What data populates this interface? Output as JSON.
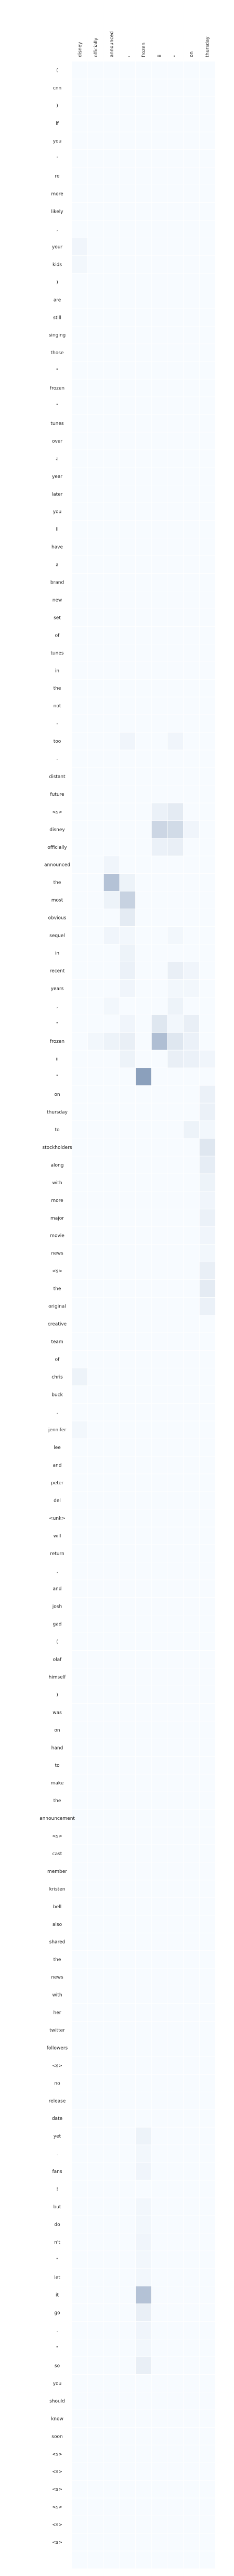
{
  "chart_data": {
    "type": "heatmap",
    "title": "",
    "xlabel": "",
    "ylabel": "",
    "x_tokens": [
      "disney",
      "officially",
      "announced",
      ",",
      "frozen",
      "ii",
      "\"",
      "on",
      "thursday"
    ],
    "y_tokens": [
      "(",
      "cnn",
      ")",
      "if",
      "you",
      "'",
      "re",
      "more",
      "likely",
      ",",
      "your",
      "kids",
      ")",
      "are",
      "still",
      "singing",
      "those",
      "\"",
      "frozen",
      "\"",
      "tunes",
      "over",
      "a",
      "year",
      "later",
      "you",
      "ll",
      "have",
      "a",
      "brand",
      "new",
      "set",
      "of",
      "tunes",
      "in",
      "the",
      "not",
      "-",
      "too",
      "-",
      "distant",
      "future",
      "<s>",
      "disney",
      "officially",
      "announced",
      "the",
      "most",
      "obvious",
      "sequel",
      "in",
      "recent",
      "years",
      ",",
      "\"",
      "frozen",
      "ii",
      "\"",
      "on",
      "thursday",
      "to",
      "stockholders",
      "along",
      "with",
      "more",
      "major",
      "movie",
      "news",
      "<s>",
      "the",
      "original",
      "creative",
      "team",
      "of",
      "chris",
      "buck",
      ",",
      "jennifer",
      "lee",
      "and",
      "peter",
      "del",
      "<unk>",
      "will",
      "return",
      ",",
      "and",
      "josh",
      "gad",
      "(",
      "olaf",
      "himself",
      ")",
      "was",
      "on",
      "hand",
      "to",
      "make",
      "the",
      "announcement",
      "<s>",
      "cast",
      "member",
      "kristen",
      "bell",
      "also",
      "shared",
      "the",
      "news",
      "with",
      "her",
      "twitter",
      "followers",
      "<s>",
      "no",
      "release",
      "date",
      "yet",
      ".",
      "fans",
      "!",
      "but",
      "do",
      "n't",
      "\"",
      "let",
      "it",
      "go",
      ".",
      "\"",
      "so",
      "you",
      "should",
      "know",
      "soon",
      "<s>",
      "<s>",
      "<s>",
      "<s>",
      "<s>",
      "<s>"
    ],
    "values": [
      [
        0,
        0,
        0,
        0,
        0,
        0,
        0,
        0,
        0
      ],
      [
        0,
        0,
        0,
        0,
        0,
        0,
        0,
        0,
        0
      ],
      [
        0,
        0,
        0,
        0,
        0,
        0,
        0,
        0,
        0
      ],
      [
        0,
        0,
        0,
        0,
        0,
        0,
        0,
        0,
        0
      ],
      [
        0,
        0,
        0,
        0,
        0,
        0,
        0,
        0,
        0
      ],
      [
        0,
        0,
        0,
        0,
        0,
        0,
        0,
        0,
        0
      ],
      [
        0,
        0,
        0,
        0,
        0,
        0,
        0,
        0,
        0
      ],
      [
        0,
        0,
        0,
        0,
        0,
        0,
        0,
        0,
        0
      ],
      [
        0,
        0,
        0,
        0,
        0,
        0,
        0,
        0,
        0
      ],
      [
        0,
        0,
        0,
        0,
        0,
        0,
        0,
        0,
        0
      ],
      [
        0.03,
        0,
        0,
        0,
        0,
        0,
        0,
        0,
        0
      ],
      [
        0.02,
        0,
        0,
        0,
        0,
        0,
        0,
        0,
        0
      ],
      [
        0,
        0,
        0,
        0,
        0,
        0,
        0,
        0,
        0
      ],
      [
        0,
        0,
        0,
        0,
        0,
        0,
        0,
        0,
        0
      ],
      [
        0,
        0,
        0,
        0,
        0,
        0,
        0,
        0,
        0
      ],
      [
        0,
        0,
        0,
        0,
        0,
        0,
        0,
        0,
        0
      ],
      [
        0,
        0,
        0,
        0,
        0,
        0,
        0,
        0,
        0
      ],
      [
        0,
        0,
        0,
        0,
        0,
        0,
        0,
        0,
        0
      ],
      [
        0,
        0,
        0,
        0,
        0,
        0,
        0,
        0,
        0
      ],
      [
        0,
        0,
        0,
        0,
        0,
        0,
        0,
        0,
        0
      ],
      [
        0,
        0,
        0,
        0,
        0,
        0,
        0,
        0,
        0
      ],
      [
        0,
        0,
        0,
        0,
        0,
        0,
        0,
        0,
        0
      ],
      [
        0,
        0,
        0,
        0,
        0,
        0,
        0,
        0,
        0
      ],
      [
        0,
        0,
        0,
        0,
        0,
        0,
        0,
        0,
        0
      ],
      [
        0,
        0,
        0,
        0,
        0,
        0,
        0,
        0,
        0
      ],
      [
        0,
        0,
        0,
        0,
        0,
        0,
        0,
        0,
        0
      ],
      [
        0,
        0,
        0,
        0,
        0,
        0,
        0,
        0,
        0
      ],
      [
        0,
        0,
        0,
        0,
        0,
        0,
        0,
        0,
        0
      ],
      [
        0,
        0,
        0,
        0,
        0,
        0,
        0,
        0,
        0
      ],
      [
        0,
        0,
        0,
        0,
        0,
        0,
        0,
        0,
        0
      ],
      [
        0,
        0,
        0,
        0,
        0,
        0,
        0,
        0,
        0
      ],
      [
        0,
        0,
        0,
        0,
        0,
        0,
        0,
        0,
        0
      ],
      [
        0,
        0,
        0,
        0,
        0,
        0,
        0,
        0,
        0
      ],
      [
        0,
        0,
        0,
        0,
        0,
        0,
        0,
        0,
        0
      ],
      [
        0,
        0,
        0,
        0,
        0,
        0,
        0,
        0,
        0
      ],
      [
        0,
        0,
        0,
        0,
        0,
        0,
        0,
        0,
        0
      ],
      [
        0,
        0,
        0,
        0,
        0,
        0,
        0,
        0,
        0
      ],
      [
        0,
        0,
        0,
        0,
        0,
        0,
        0,
        0,
        0
      ],
      [
        0,
        0,
        0,
        0.03,
        0,
        0,
        0.03,
        0,
        0
      ],
      [
        0,
        0,
        0,
        0,
        0,
        0,
        0,
        0,
        0
      ],
      [
        0,
        0,
        0,
        0,
        0,
        0,
        0,
        0,
        0
      ],
      [
        0,
        0,
        0,
        0,
        0,
        0,
        0,
        0,
        0
      ],
      [
        0,
        0,
        0,
        0,
        0,
        0.05,
        0.08,
        0,
        0
      ],
      [
        0,
        0,
        0,
        0,
        0,
        0.18,
        0.16,
        0.03,
        0
      ],
      [
        0,
        0,
        0,
        0,
        0,
        0.05,
        0.06,
        0,
        0
      ],
      [
        0,
        0,
        0.03,
        0,
        0,
        0,
        0,
        0,
        0
      ],
      [
        0,
        0,
        0.28,
        0.04,
        0,
        0,
        0,
        0,
        0
      ],
      [
        0,
        0,
        0.04,
        0.2,
        0,
        0,
        0,
        0,
        0
      ],
      [
        0,
        0,
        0,
        0.08,
        0,
        0,
        0,
        0,
        0
      ],
      [
        0,
        0,
        0.03,
        0.02,
        0,
        0,
        0.02,
        0,
        0
      ],
      [
        0,
        0,
        0,
        0.04,
        0,
        0,
        0,
        0,
        0
      ],
      [
        0,
        0,
        0,
        0.05,
        0,
        0,
        0.06,
        0.03,
        0
      ],
      [
        0,
        0,
        0,
        0.03,
        0,
        0,
        0.02,
        0.02,
        0
      ],
      [
        0,
        0,
        0.02,
        0,
        0,
        0,
        0.04,
        0,
        0
      ],
      [
        0,
        0,
        0,
        0.03,
        0,
        0.1,
        0.02,
        0.06,
        0
      ],
      [
        0,
        0.02,
        0.04,
        0.06,
        0,
        0.3,
        0.1,
        0.05,
        0
      ],
      [
        0,
        0,
        0,
        0.04,
        0,
        0,
        0.06,
        0.05,
        0.03
      ],
      [
        0,
        0,
        0,
        0,
        0.45,
        0,
        0,
        0,
        0
      ],
      [
        0,
        0,
        0,
        0,
        0,
        0,
        0,
        0,
        0.05
      ],
      [
        0,
        0,
        0,
        0,
        0,
        0,
        0,
        0,
        0.05
      ],
      [
        0,
        0,
        0,
        0,
        0,
        0,
        0,
        0.04,
        0.02
      ],
      [
        0,
        0,
        0,
        0,
        0,
        0,
        0,
        0,
        0.1
      ],
      [
        0,
        0,
        0,
        0,
        0,
        0,
        0,
        0,
        0.07
      ],
      [
        0,
        0,
        0,
        0,
        0,
        0,
        0,
        0,
        0.04
      ],
      [
        0,
        0,
        0,
        0,
        0,
        0,
        0,
        0,
        0.03
      ],
      [
        0,
        0,
        0,
        0,
        0,
        0,
        0,
        0,
        0.05
      ],
      [
        0,
        0,
        0,
        0,
        0,
        0,
        0,
        0,
        0.03
      ],
      [
        0,
        0,
        0,
        0,
        0,
        0,
        0,
        0,
        0.02
      ],
      [
        0,
        0,
        0,
        0,
        0,
        0,
        0,
        0,
        0.06
      ],
      [
        0,
        0,
        0,
        0,
        0,
        0,
        0,
        0,
        0.08
      ],
      [
        0,
        0,
        0,
        0,
        0,
        0,
        0,
        0,
        0.05
      ],
      [
        0,
        0,
        0,
        0,
        0,
        0,
        0,
        0,
        0
      ],
      [
        0,
        0,
        0,
        0,
        0,
        0,
        0,
        0,
        0
      ],
      [
        0,
        0,
        0,
        0,
        0,
        0,
        0,
        0,
        0
      ],
      [
        0.04,
        0,
        0,
        0,
        0,
        0,
        0,
        0,
        0
      ],
      [
        0,
        0,
        0,
        0,
        0,
        0,
        0,
        0,
        0
      ],
      [
        0,
        0,
        0,
        0,
        0,
        0,
        0,
        0,
        0
      ],
      [
        0.02,
        0,
        0,
        0,
        0,
        0,
        0,
        0,
        0
      ],
      [
        0,
        0,
        0,
        0,
        0,
        0,
        0,
        0,
        0
      ],
      [
        0,
        0,
        0,
        0,
        0,
        0,
        0,
        0,
        0
      ],
      [
        0,
        0,
        0,
        0,
        0,
        0,
        0,
        0,
        0
      ],
      [
        0,
        0,
        0,
        0,
        0,
        0,
        0,
        0,
        0
      ],
      [
        0,
        0,
        0,
        0,
        0,
        0,
        0,
        0,
        0
      ],
      [
        0,
        0,
        0,
        0,
        0,
        0,
        0,
        0,
        0
      ],
      [
        0,
        0,
        0,
        0,
        0,
        0,
        0,
        0,
        0
      ],
      [
        0,
        0,
        0,
        0,
        0,
        0,
        0,
        0,
        0
      ],
      [
        0,
        0,
        0,
        0,
        0,
        0,
        0,
        0,
        0
      ],
      [
        0,
        0,
        0,
        0,
        0,
        0,
        0,
        0,
        0
      ],
      [
        0,
        0,
        0,
        0,
        0,
        0,
        0,
        0,
        0
      ],
      [
        0,
        0,
        0,
        0,
        0,
        0,
        0,
        0,
        0
      ],
      [
        0,
        0,
        0,
        0,
        0,
        0,
        0,
        0,
        0
      ],
      [
        0,
        0,
        0,
        0,
        0,
        0,
        0,
        0,
        0
      ],
      [
        0,
        0,
        0,
        0,
        0,
        0,
        0,
        0,
        0
      ],
      [
        0,
        0,
        0,
        0,
        0,
        0,
        0,
        0,
        0
      ],
      [
        0,
        0,
        0,
        0,
        0,
        0,
        0,
        0,
        0
      ],
      [
        0,
        0,
        0,
        0,
        0,
        0,
        0,
        0,
        0
      ],
      [
        0,
        0,
        0,
        0,
        0,
        0,
        0,
        0,
        0
      ],
      [
        0,
        0,
        0,
        0,
        0,
        0,
        0,
        0,
        0
      ],
      [
        0,
        0,
        0,
        0,
        0,
        0,
        0,
        0,
        0
      ],
      [
        0,
        0,
        0,
        0,
        0,
        0,
        0,
        0,
        0
      ],
      [
        0,
        0,
        0,
        0,
        0,
        0,
        0,
        0,
        0
      ],
      [
        0,
        0,
        0,
        0,
        0,
        0,
        0,
        0,
        0
      ],
      [
        0,
        0,
        0,
        0,
        0,
        0,
        0,
        0,
        0
      ],
      [
        0,
        0,
        0,
        0,
        0,
        0,
        0,
        0,
        0
      ],
      [
        0,
        0,
        0,
        0,
        0,
        0,
        0,
        0,
        0
      ],
      [
        0,
        0,
        0,
        0,
        0,
        0,
        0,
        0,
        0
      ],
      [
        0,
        0,
        0,
        0,
        0,
        0,
        0,
        0,
        0
      ],
      [
        0,
        0,
        0,
        0,
        0,
        0,
        0,
        0,
        0
      ],
      [
        0,
        0,
        0,
        0,
        0,
        0,
        0,
        0,
        0
      ],
      [
        0,
        0,
        0,
        0,
        0,
        0,
        0,
        0,
        0
      ],
      [
        0,
        0,
        0,
        0,
        0,
        0,
        0,
        0,
        0
      ],
      [
        0,
        0,
        0,
        0,
        0,
        0,
        0,
        0,
        0
      ],
      [
        0,
        0,
        0,
        0,
        0,
        0,
        0,
        0,
        0
      ],
      [
        0,
        0,
        0,
        0,
        0,
        0,
        0,
        0,
        0
      ],
      [
        0,
        0,
        0,
        0,
        0,
        0,
        0,
        0,
        0
      ],
      [
        0,
        0,
        0,
        0,
        0,
        0,
        0,
        0,
        0
      ],
      [
        0,
        0,
        0,
        0,
        0,
        0,
        0,
        0,
        0
      ],
      [
        0,
        0,
        0,
        0,
        0.04,
        0,
        0,
        0,
        0
      ],
      [
        0,
        0,
        0,
        0,
        0.02,
        0,
        0,
        0,
        0
      ],
      [
        0,
        0,
        0,
        0,
        0.03,
        0,
        0,
        0,
        0
      ],
      [
        0,
        0,
        0,
        0,
        0,
        0,
        0,
        0,
        0
      ],
      [
        0,
        0,
        0,
        0,
        0.02,
        0,
        0,
        0,
        0
      ],
      [
        0,
        0,
        0,
        0,
        0.02,
        0,
        0,
        0,
        0
      ],
      [
        0,
        0,
        0,
        0,
        0.03,
        0,
        0,
        0,
        0
      ],
      [
        0,
        0,
        0,
        0,
        0.02,
        0,
        0,
        0,
        0
      ],
      [
        0,
        0,
        0,
        0,
        0.02,
        0,
        0,
        0,
        0
      ],
      [
        0,
        0,
        0,
        0,
        0.28,
        0,
        0,
        0,
        0
      ],
      [
        0,
        0,
        0,
        0,
        0.06,
        0,
        0,
        0,
        0
      ],
      [
        0,
        0,
        0,
        0,
        0.03,
        0,
        0,
        0,
        0
      ],
      [
        0,
        0,
        0,
        0,
        0.02,
        0,
        0,
        0,
        0
      ],
      [
        0,
        0,
        0,
        0,
        0.06,
        0,
        0,
        0,
        0
      ],
      [
        0,
        0,
        0,
        0,
        0,
        0,
        0,
        0,
        0
      ],
      [
        0,
        0,
        0,
        0,
        0,
        0,
        0,
        0,
        0
      ],
      [
        0,
        0,
        0,
        0,
        0,
        0,
        0,
        0,
        0
      ],
      [
        0,
        0,
        0,
        0,
        0,
        0,
        0,
        0,
        0
      ],
      [
        0,
        0,
        0,
        0,
        0,
        0,
        0,
        0,
        0
      ],
      [
        0,
        0,
        0,
        0,
        0,
        0,
        0,
        0,
        0
      ],
      [
        0,
        0,
        0,
        0,
        0,
        0,
        0,
        0,
        0
      ],
      [
        0,
        0,
        0,
        0,
        0,
        0,
        0,
        0,
        0
      ],
      [
        0,
        0,
        0,
        0,
        0,
        0,
        0,
        0,
        0
      ],
      [
        0,
        0,
        0,
        0,
        0,
        0,
        0,
        0,
        0
      ],
      [
        0,
        0,
        0,
        0,
        0,
        0,
        0,
        0,
        0
      ]
    ],
    "vmin": 0,
    "vmax": 1,
    "colormap": "Blues",
    "grid": false,
    "colors": {
      "low": "#f7fbff",
      "high": "#08306b",
      "cell_border": "#ffffff"
    }
  }
}
